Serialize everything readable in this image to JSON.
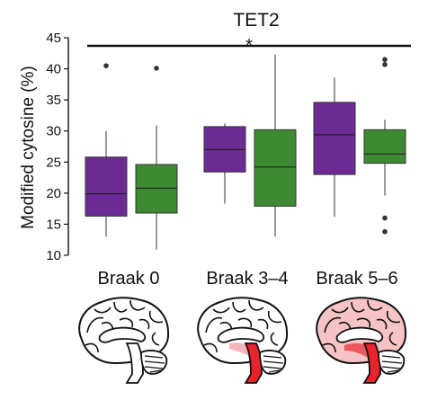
{
  "chart_data": {
    "type": "box",
    "title": "TET2",
    "ylabel": "Modified cytosine (%)",
    "xlabel": "",
    "ylim": [
      10,
      45
    ],
    "yticks": [
      10,
      15,
      20,
      25,
      30,
      35,
      40,
      45
    ],
    "categories": [
      "Braak 0",
      "Braak 3–4",
      "Braak 5–6"
    ],
    "grid": false,
    "significance": {
      "label": "*",
      "y": 43.7,
      "from": "Braak 0",
      "to": "Braak 5–6"
    },
    "series": [
      {
        "color": "#6b2a94",
        "boxes": [
          {
            "whisker_low": 13.0,
            "q1": 16.3,
            "median": 19.9,
            "q3": 25.8,
            "whisker_high": 30.0,
            "outliers": [
              40.5
            ]
          },
          {
            "whisker_low": 18.3,
            "q1": 23.4,
            "median": 27.0,
            "q3": 30.7,
            "whisker_high": 31.2,
            "outliers": []
          },
          {
            "whisker_low": 16.2,
            "q1": 23.0,
            "median": 29.4,
            "q3": 34.6,
            "whisker_high": 38.6,
            "outliers": []
          }
        ]
      },
      {
        "color": "#3e8a33",
        "boxes": [
          {
            "whisker_low": 10.9,
            "q1": 16.8,
            "median": 20.8,
            "q3": 24.6,
            "whisker_high": 30.9,
            "outliers": [
              40.1
            ]
          },
          {
            "whisker_low": 13.0,
            "q1": 17.9,
            "median": 24.2,
            "q3": 30.2,
            "whisker_high": 42.3,
            "outliers": []
          },
          {
            "whisker_low": 19.6,
            "q1": 24.8,
            "median": 26.3,
            "q3": 30.2,
            "whisker_high": 31.8,
            "outliers": [
              41.5,
              40.7,
              16.0,
              13.8
            ]
          }
        ]
      }
    ]
  },
  "brain_icons": [
    "brain-braak-0-icon",
    "brain-braak-3-4-icon",
    "brain-braak-5-6-icon"
  ],
  "colors": {
    "axis": "#111111",
    "lesion_light": "#f4b6b8",
    "lesion_dark": "#e8232b"
  }
}
